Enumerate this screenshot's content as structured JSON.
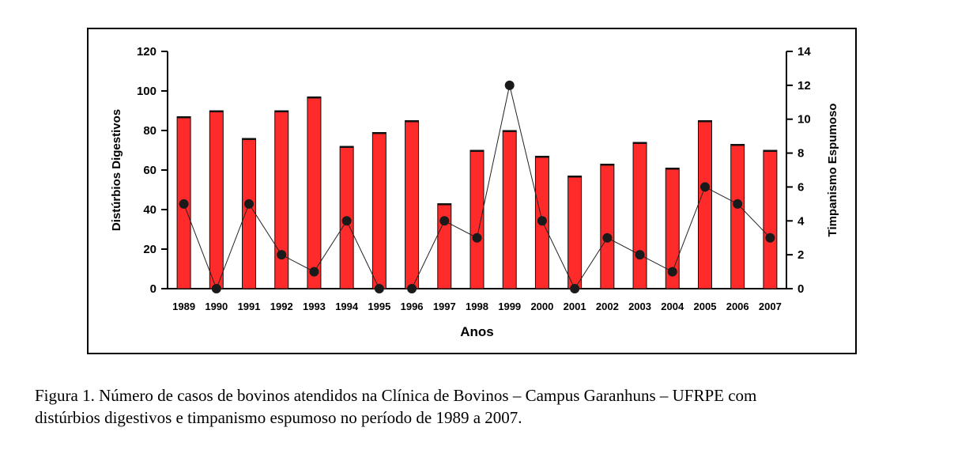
{
  "chart_data": {
    "type": "bar+line",
    "categories": [
      "1989",
      "1990",
      "1991",
      "1992",
      "1993",
      "1994",
      "1995",
      "1996",
      "1997",
      "1998",
      "1999",
      "2000",
      "2001",
      "2002",
      "2003",
      "2004",
      "2005",
      "2006",
      "2007"
    ],
    "series": [
      {
        "name": "Distúrbios Digestivos",
        "type": "bar",
        "axis": "left",
        "color": "#ff2a2a",
        "values": [
          87,
          90,
          76,
          90,
          97,
          72,
          79,
          85,
          43,
          70,
          80,
          67,
          57,
          63,
          74,
          61,
          85,
          73,
          70
        ]
      },
      {
        "name": "Timpanismo Espumoso",
        "type": "line",
        "axis": "right",
        "color": "#1a1a1a",
        "values": [
          5,
          0,
          5,
          2,
          1,
          4,
          0,
          0,
          4,
          3,
          12,
          4,
          0,
          3,
          2,
          1,
          6,
          5,
          3
        ]
      }
    ],
    "xlabel": "Anos",
    "ylabel_left": "Distúrbios Digestivos",
    "ylabel_right": "Timpanismo Espumoso",
    "ylim_left": [
      0,
      120
    ],
    "yticks_left": [
      "0",
      "20",
      "40",
      "60",
      "80",
      "100",
      "120"
    ],
    "ylim_right": [
      0,
      14
    ],
    "yticks_right": [
      "0",
      "2",
      "4",
      "6",
      "8",
      "10",
      "12",
      "14"
    ],
    "grid": false
  },
  "caption": {
    "line1": "Figura 1. Número de casos de bovinos atendidos na Clínica de Bovinos – Campus Garanhuns – UFRPE com",
    "line2": "distúrbios digestivos e timpanismo espumoso no período de 1989 a 2007."
  }
}
